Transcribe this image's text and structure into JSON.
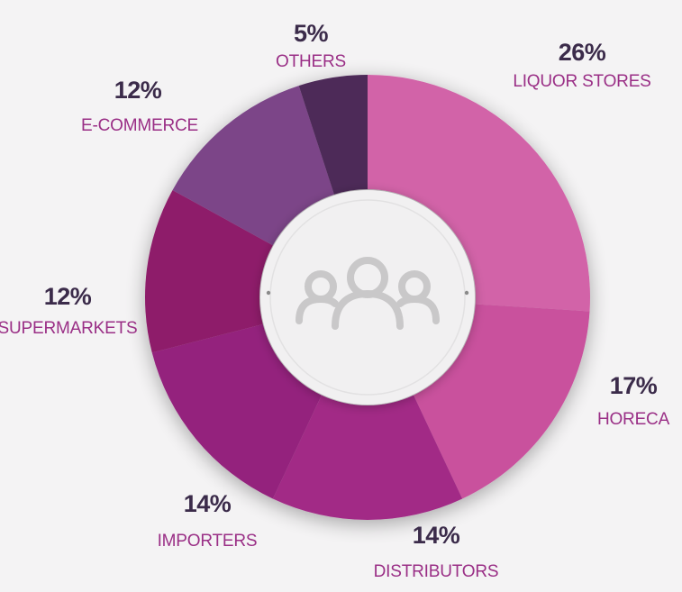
{
  "chart_data": {
    "type": "pie",
    "variant": "donut",
    "categories": [
      "LIQUOR STORES",
      "HORECA",
      "DISTRIBUTORS",
      "IMPORTERS",
      "SUPERMARKETS",
      "E-COMMERCE",
      "OTHERS"
    ],
    "values": [
      26,
      17,
      14,
      14,
      12,
      12,
      5
    ],
    "value_labels": [
      "26%",
      "17%",
      "14%",
      "14%",
      "12%",
      "12%",
      "5%"
    ],
    "colors": [
      "#d263a8",
      "#c9519d",
      "#a22b86",
      "#94227d",
      "#8e1c6a",
      "#7b4588",
      "#4e2958"
    ],
    "center_icon": "people-group-icon",
    "legend": "none (direct labels around the ring)"
  },
  "style": {
    "value_label_color": "#3b2b4a",
    "category_label_color": "#9a2f86",
    "background": "#f4f3f4",
    "center_fill": "#f1f0f1",
    "icon_color": "#c9c8c9"
  }
}
